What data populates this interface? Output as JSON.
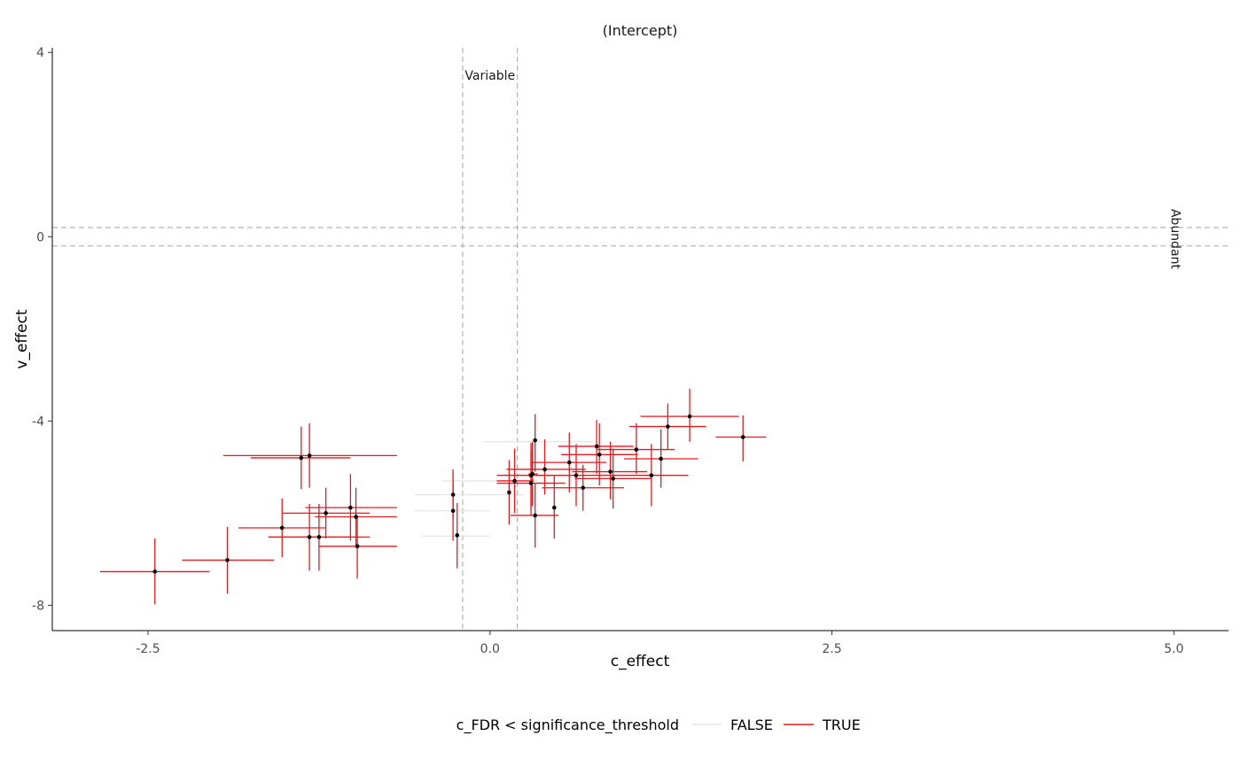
{
  "chart_data": {
    "type": "scatter",
    "title": "(Intercept)",
    "xlabel": "c_effect",
    "ylabel": "v_effect",
    "xlim": [
      -3.2,
      5.4
    ],
    "ylim": [
      -8.55,
      4.1
    ],
    "x_ticks": [
      -2.5,
      0,
      2.5,
      5
    ],
    "x_tick_labels": [
      "-2.5",
      "0.0",
      "2.5",
      "5.0"
    ],
    "y_ticks": [
      4,
      0,
      -4,
      -8
    ],
    "y_tick_labels": [
      "4",
      "0",
      "-4",
      "-8"
    ],
    "grid": false,
    "vlines": [
      -0.2,
      0.2
    ],
    "hlines": [
      0.2,
      -0.2
    ],
    "annotations": [
      {
        "text": "Variable",
        "x": 0.0,
        "y": 3.5,
        "rotate": 0
      },
      {
        "text": "Abundant",
        "x": 5.0,
        "y": -0.05,
        "rotate": 90
      }
    ],
    "legend": {
      "title": "c_FDR < significance_threshold",
      "position": "bottom",
      "entries": [
        {
          "label": "FALSE",
          "color": "#e6e6e6"
        },
        {
          "label": "TRUE",
          "color": "#e31a1c"
        }
      ]
    },
    "series": [
      {
        "name": "FALSE",
        "color": "#e6e6e6",
        "points": [
          {
            "x": 0.15,
            "y": -4.45,
            "xmin": -0.05,
            "xmax": 0.75,
            "ymin": -4.45,
            "ymax": -4.45
          },
          {
            "x": 0.0,
            "y": -5.3,
            "xmin": -0.35,
            "xmax": 0.35,
            "ymin": -5.3,
            "ymax": -5.3
          },
          {
            "x": -0.1,
            "y": -5.6,
            "xmin": -0.55,
            "xmax": 0.25,
            "ymin": -5.6,
            "ymax": -5.6
          },
          {
            "x": -0.2,
            "y": -5.95,
            "xmin": -0.55,
            "xmax": 0.0,
            "ymin": -5.95,
            "ymax": -5.95
          },
          {
            "x": -0.2,
            "y": -6.5,
            "xmin": -0.5,
            "xmax": -0.0,
            "ymin": -6.5,
            "ymax": -6.5
          }
        ]
      },
      {
        "name": "TRUE",
        "color": "#e31a1c",
        "points": [
          {
            "x": -2.45,
            "y": -7.27,
            "xmin": -2.85,
            "xmax": -2.05,
            "ymin": -7.98,
            "ymax": -6.55
          },
          {
            "x": -1.92,
            "y": -7.02,
            "xmin": -2.25,
            "xmax": -1.58,
            "ymin": -7.75,
            "ymax": -6.3
          },
          {
            "x": -1.52,
            "y": -6.32,
            "xmin": -1.84,
            "xmax": -1.2,
            "ymin": -6.96,
            "ymax": -5.68
          },
          {
            "x": -1.38,
            "y": -4.8,
            "xmin": -1.75,
            "xmax": -1.02,
            "ymin": -5.48,
            "ymax": -4.12
          },
          {
            "x": -1.32,
            "y": -4.75,
            "xmin": -1.95,
            "xmax": -0.68,
            "ymin": -5.45,
            "ymax": -4.05
          },
          {
            "x": -1.32,
            "y": -6.52,
            "xmin": -1.62,
            "xmax": -1.02,
            "ymin": -7.25,
            "ymax": -5.8
          },
          {
            "x": -1.25,
            "y": -6.52,
            "xmin": -1.62,
            "xmax": -0.88,
            "ymin": -7.25,
            "ymax": -5.8
          },
          {
            "x": -1.2,
            "y": -6.0,
            "xmin": -1.52,
            "xmax": -0.88,
            "ymin": -6.55,
            "ymax": -5.45
          },
          {
            "x": -1.02,
            "y": -5.88,
            "xmin": -1.35,
            "xmax": -0.68,
            "ymin": -6.6,
            "ymax": -5.15
          },
          {
            "x": -0.98,
            "y": -6.08,
            "xmin": -1.28,
            "xmax": -0.68,
            "ymin": -6.75,
            "ymax": -5.45
          },
          {
            "x": -0.97,
            "y": -6.72,
            "xmin": -1.25,
            "xmax": -0.68,
            "ymin": -7.42,
            "ymax": -6.05
          },
          {
            "x": -0.27,
            "y": -5.6,
            "xmin": -0.28,
            "xmax": -0.26,
            "ymin": -6.15,
            "ymax": -5.05
          },
          {
            "x": -0.27,
            "y": -5.95,
            "xmin": -0.28,
            "xmax": -0.26,
            "ymin": -6.6,
            "ymax": -5.3
          },
          {
            "x": -0.24,
            "y": -6.48,
            "xmin": -0.25,
            "xmax": -0.23,
            "ymin": -7.2,
            "ymax": -5.78
          },
          {
            "x": 0.14,
            "y": -5.55,
            "xmin": 0.14,
            "xmax": 0.14,
            "ymin": -6.25,
            "ymax": -4.85
          },
          {
            "x": 0.18,
            "y": -5.3,
            "xmin": 0.05,
            "xmax": 0.32,
            "ymin": -6.0,
            "ymax": -4.6
          },
          {
            "x": 0.3,
            "y": -5.18,
            "xmin": 0.05,
            "xmax": 0.55,
            "ymin": -5.9,
            "ymax": -4.48
          },
          {
            "x": 0.3,
            "y": -5.35,
            "xmin": 0.05,
            "xmax": 0.55,
            "ymin": -6.05,
            "ymax": -4.65
          },
          {
            "x": 0.31,
            "y": -5.15,
            "xmin": 0.28,
            "xmax": 0.35,
            "ymin": -5.85,
            "ymax": -4.45
          },
          {
            "x": 0.33,
            "y": -4.42,
            "xmin": 0.32,
            "xmax": 0.34,
            "ymin": -5.1,
            "ymax": -3.85
          },
          {
            "x": 0.33,
            "y": -6.05,
            "xmin": 0.15,
            "xmax": 0.5,
            "ymin": -6.75,
            "ymax": -5.35
          },
          {
            "x": 0.4,
            "y": -5.05,
            "xmin": 0.12,
            "xmax": 0.7,
            "ymin": -5.6,
            "ymax": -4.4
          },
          {
            "x": 0.47,
            "y": -5.88,
            "xmin": 0.47,
            "xmax": 0.47,
            "ymin": -6.55,
            "ymax": -5.2
          },
          {
            "x": 0.58,
            "y": -4.9,
            "xmin": 0.3,
            "xmax": 0.85,
            "ymin": -5.55,
            "ymax": -4.25
          },
          {
            "x": 0.63,
            "y": -5.18,
            "xmin": 0.35,
            "xmax": 0.92,
            "ymin": -5.85,
            "ymax": -4.5
          },
          {
            "x": 0.68,
            "y": -5.45,
            "xmin": 0.38,
            "xmax": 0.98,
            "ymin": -5.95,
            "ymax": -4.95
          },
          {
            "x": 0.78,
            "y": -4.55,
            "xmin": 0.5,
            "xmax": 1.05,
            "ymin": -5.15,
            "ymax": -3.98
          },
          {
            "x": 0.8,
            "y": -4.73,
            "xmin": 0.52,
            "xmax": 1.08,
            "ymin": -5.4,
            "ymax": -4.05
          },
          {
            "x": 0.88,
            "y": -5.1,
            "xmin": 0.6,
            "xmax": 1.15,
            "ymin": -5.7,
            "ymax": -4.45
          },
          {
            "x": 0.9,
            "y": -5.25,
            "xmin": 0.62,
            "xmax": 1.18,
            "ymin": -5.9,
            "ymax": -4.6
          },
          {
            "x": 1.07,
            "y": -4.62,
            "xmin": 0.78,
            "xmax": 1.35,
            "ymin": -5.15,
            "ymax": -4.05
          },
          {
            "x": 1.18,
            "y": -5.18,
            "xmin": 0.9,
            "xmax": 1.45,
            "ymin": -5.85,
            "ymax": -4.5
          },
          {
            "x": 1.25,
            "y": -4.82,
            "xmin": 0.98,
            "xmax": 1.52,
            "ymin": -5.45,
            "ymax": -4.18
          },
          {
            "x": 1.3,
            "y": -4.12,
            "xmin": 1.02,
            "xmax": 1.58,
            "ymin": -4.62,
            "ymax": -3.62
          },
          {
            "x": 1.46,
            "y": -3.9,
            "xmin": 1.1,
            "xmax": 1.82,
            "ymin": -4.45,
            "ymax": -3.3
          },
          {
            "x": 1.85,
            "y": -4.35,
            "xmin": 1.65,
            "xmax": 2.02,
            "ymin": -4.88,
            "ymax": -3.88
          }
        ]
      }
    ]
  }
}
